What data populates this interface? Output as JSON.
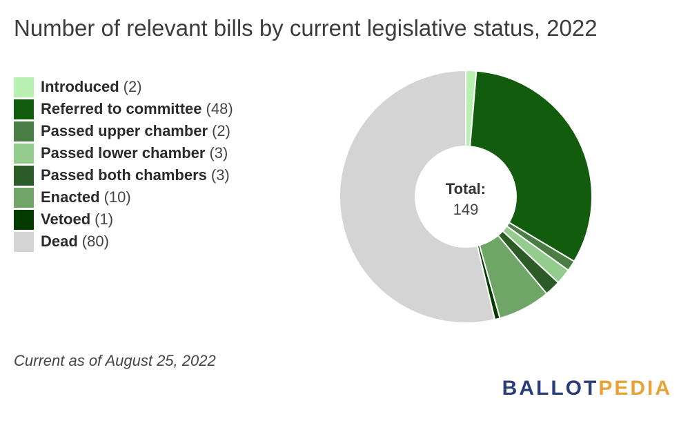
{
  "title": "Number of relevant bills by current legislative status, 2022",
  "footnote": "Current as of August 25, 2022",
  "logo": {
    "part1": "BALLOT",
    "part2": "PEDIA"
  },
  "chart_data": {
    "type": "pie",
    "title": "Number of relevant bills by current legislative status, 2022",
    "donut": true,
    "center_label": "Total:",
    "center_value": "149",
    "legend_position": "left",
    "slices": [
      {
        "label": "Introduced",
        "count_text": "(2)",
        "value": 2,
        "color": "#b7f0b1"
      },
      {
        "label": "Referred to committee",
        "count_text": "(48)",
        "value": 48,
        "color": "#125c0e"
      },
      {
        "label": "Passed upper chamber",
        "count_text": "(2)",
        "value": 2,
        "color": "#4a7d44"
      },
      {
        "label": "Passed lower chamber",
        "count_text": "(3)",
        "value": 3,
        "color": "#94cc8e"
      },
      {
        "label": "Passed both chambers",
        "count_text": "(3)",
        "value": 3,
        "color": "#2b5c27"
      },
      {
        "label": "Enacted",
        "count_text": "(10)",
        "value": 10,
        "color": "#6fa566"
      },
      {
        "label": "Vetoed",
        "count_text": "(1)",
        "value": 1,
        "color": "#043c00"
      },
      {
        "label": "Dead",
        "count_text": "(80)",
        "value": 80,
        "color": "#d4d4d4"
      }
    ]
  }
}
